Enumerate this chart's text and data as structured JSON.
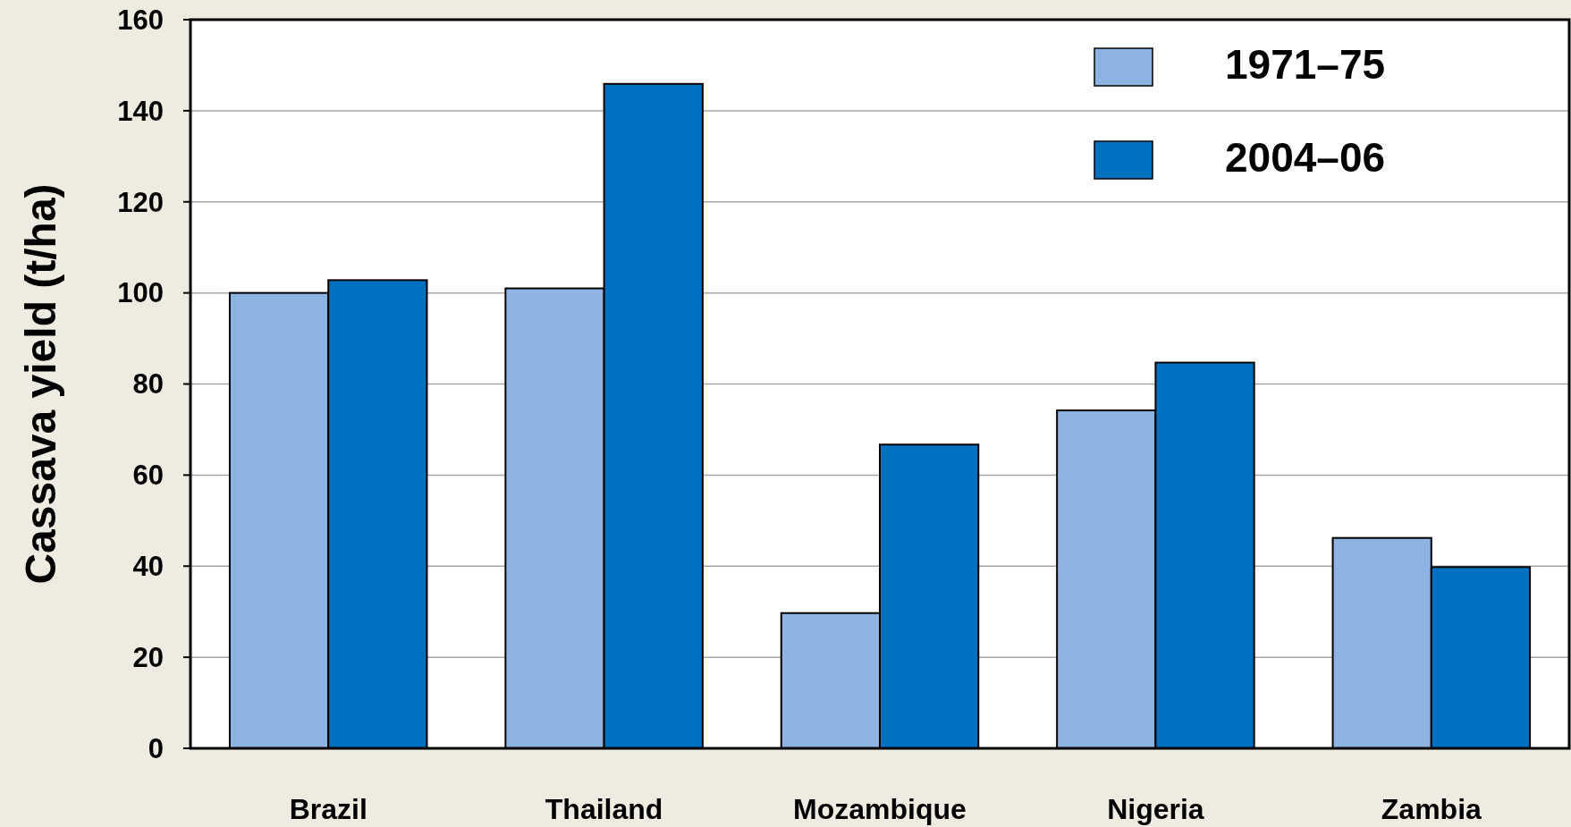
{
  "chart_data": {
    "type": "bar",
    "ylabel": "Cassava yield (t/ha)",
    "categories": [
      "Brazil",
      "Thailand",
      "Mozambique",
      "Nigeria",
      "Zambia"
    ],
    "series": [
      {
        "name": "1971–75",
        "color": "#8db3e2",
        "values": [
          100,
          101,
          29.7,
          74.2,
          46.2
        ]
      },
      {
        "name": "2004–06",
        "color": "#0070c0",
        "values": [
          102.8,
          145.9,
          66.7,
          84.7,
          39.8
        ]
      }
    ],
    "ylim": [
      0,
      160
    ],
    "yticks": [
      0,
      20,
      40,
      60,
      80,
      100,
      120,
      140,
      160
    ],
    "grid": "y",
    "legend": "top right"
  }
}
